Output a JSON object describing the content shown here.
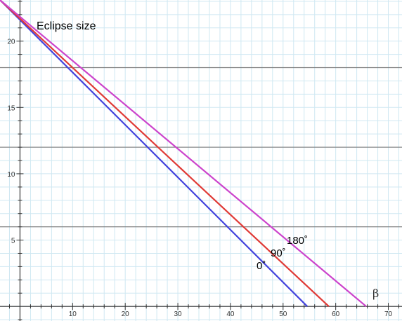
{
  "chart_data": {
    "type": "line",
    "title": "Eclipse size",
    "xlabel": "β",
    "ylabel": "",
    "xlim": [
      -3.8,
      72.6
    ],
    "ylim": [
      -1.1,
      23.1
    ],
    "grid": true,
    "x_ticks": [
      10,
      20,
      30,
      40,
      50,
      60,
      70
    ],
    "y_ticks": [
      5,
      10,
      15,
      20
    ],
    "reference_lines_y": [
      6,
      12,
      18
    ],
    "series": [
      {
        "name": "0˚",
        "color": "#4444dd",
        "points": [
          [
            -3.8,
            23.1
          ],
          [
            54.6,
            0
          ]
        ]
      },
      {
        "name": "90˚",
        "color": "#e03a36",
        "points": [
          [
            -3.8,
            23.1
          ],
          [
            58.7,
            0
          ]
        ]
      },
      {
        "name": "180˚",
        "color": "#cc44cc",
        "points": [
          [
            -3.8,
            23.1
          ],
          [
            65.8,
            0
          ]
        ]
      }
    ],
    "colors": {
      "grid": "#cfe8f2",
      "reference": "#7a7a7a",
      "axis": "#333333"
    }
  }
}
